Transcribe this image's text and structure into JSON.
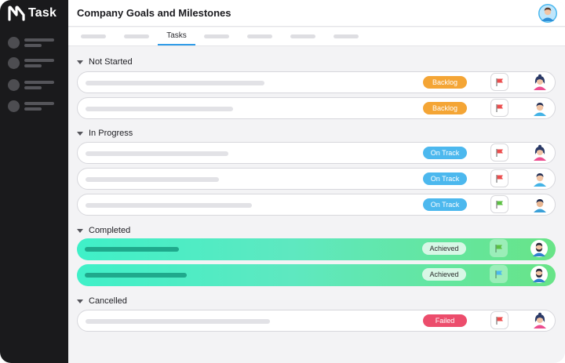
{
  "app": {
    "logo_icon": "n-logo-icon",
    "name": "Task"
  },
  "header": {
    "title": "Company Goals and Milestones",
    "avatar_icon": "user-avatar-icon"
  },
  "tabs": {
    "active_label": "Tasks"
  },
  "groups": [
    {
      "label": "Not Started",
      "rows": [
        {
          "status": "Backlog",
          "status_color": "#f4a535",
          "flag_color": "#ec4d4d",
          "assignee": "woman-avatar-icon"
        },
        {
          "status": "Backlog",
          "status_color": "#f4a535",
          "flag_color": "#ec4d4d",
          "assignee": "man-avatar-icon"
        }
      ]
    },
    {
      "label": "In Progress",
      "rows": [
        {
          "status": "On Track",
          "status_color": "#4cb8ee",
          "flag_color": "#ec4d4d",
          "assignee": "woman-avatar-icon"
        },
        {
          "status": "On Track",
          "status_color": "#4cb8ee",
          "flag_color": "#ec4d4d",
          "assignee": "man-avatar-icon"
        },
        {
          "status": "On Track",
          "status_color": "#4cb8ee",
          "flag_color": "#5cc043",
          "assignee": "man-avatar-icon"
        }
      ]
    },
    {
      "label": "Completed",
      "rows": [
        {
          "status": "Achieved",
          "status_color": "#d8f7e6",
          "flag_color": "#5cc043",
          "assignee": "bearded-man-avatar-icon"
        },
        {
          "status": "Achieved",
          "status_color": "#d8f7e6",
          "flag_color": "#4cb8ee",
          "assignee": "bearded-man-avatar-icon"
        }
      ]
    },
    {
      "label": "Cancelled",
      "rows": [
        {
          "status": "Failed",
          "status_color": "#ec4d6c",
          "flag_color": "#ec4d4d",
          "assignee": "woman-avatar-icon"
        }
      ]
    }
  ]
}
